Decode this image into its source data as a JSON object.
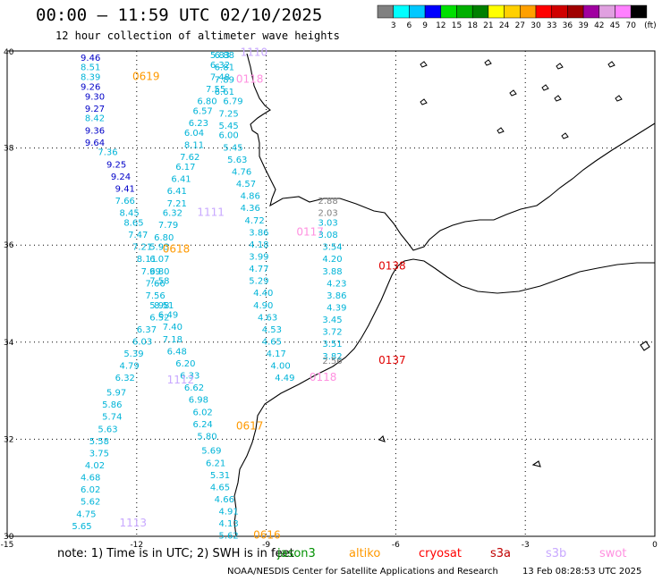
{
  "header": {
    "title": "00:00 — 11:59 UTC 02/10/2025",
    "subtitle": "12 hour collection of altimeter wave heights"
  },
  "scale": {
    "labels": [
      "3",
      "6",
      "9",
      "12",
      "15",
      "18",
      "21",
      "24",
      "27",
      "30",
      "33",
      "36",
      "39",
      "42",
      "45",
      "70"
    ],
    "unit": "(ft)",
    "colors": [
      "#808080",
      "#00ffff",
      "#00c8ff",
      "#0000ff",
      "#00e000",
      "#00b000",
      "#008000",
      "#ffff00",
      "#ffd000",
      "#ffa000",
      "#ff0000",
      "#d00000",
      "#a00000",
      "#a000a0",
      "#e0a0e0",
      "#ff80ff",
      "#000000"
    ]
  },
  "axes": {
    "x_ticks": [
      "-15",
      "-12",
      "-9",
      "-6",
      "-3",
      "0"
    ],
    "y_ticks": [
      "40",
      "38",
      "36",
      "34",
      "32",
      "30"
    ]
  },
  "footer": {
    "note": "note:  1) Time is in UTC;  2) SWH is in feet",
    "satellites": [
      {
        "name": "jason3",
        "color": "#009000"
      },
      {
        "name": "altiko",
        "color": "#ff9900"
      },
      {
        "name": "cryosat",
        "color": "#ff0000"
      },
      {
        "name": "s3a",
        "color": "#c00000"
      },
      {
        "name": "s3b",
        "color": "#c8a8ff"
      },
      {
        "name": "swot",
        "color": "#ff90e0"
      }
    ],
    "credit": "NOAA/NESDIS Center for Satellite Applications and Research",
    "timestamp": "13 Feb 08:28:53 UTC 2025"
  },
  "tracks": [
    {
      "label": "0619",
      "color": "#ff9900",
      "lon": -12.1,
      "lat": 39.4,
      "points": [
        {
          "lon": -13.3,
          "lat": 39.8,
          "v": "9.46",
          "c": "#0000c8"
        },
        {
          "lon": -13.3,
          "lat": 39.6,
          "v": "8.51",
          "c": "#00b4d8"
        },
        {
          "lon": -13.3,
          "lat": 39.4,
          "v": "8.39",
          "c": "#00b4d8"
        },
        {
          "lon": -13.3,
          "lat": 39.2,
          "v": "9.26",
          "c": "#0000c8"
        },
        {
          "lon": -13.2,
          "lat": 39.0,
          "v": "9.30",
          "c": "#0000c8"
        },
        {
          "lon": -13.2,
          "lat": 38.75,
          "v": "9.27",
          "c": "#0000c8"
        },
        {
          "lon": -13.2,
          "lat": 38.55,
          "v": "8.42",
          "c": "#00b4d8"
        },
        {
          "lon": -13.2,
          "lat": 38.3,
          "v": "9.36",
          "c": "#0000c8"
        },
        {
          "lon": -13.2,
          "lat": 38.05,
          "v": "9.64",
          "c": "#0000c8"
        },
        {
          "lon": -12.9,
          "lat": 37.85,
          "v": "7.36",
          "c": "#00b4d8"
        },
        {
          "lon": -12.7,
          "lat": 37.6,
          "v": "9.25",
          "c": "#0000c8"
        },
        {
          "lon": -12.6,
          "lat": 37.35,
          "v": "9.24",
          "c": "#0000c8"
        },
        {
          "lon": -12.5,
          "lat": 37.1,
          "v": "9.41",
          "c": "#0000c8"
        },
        {
          "lon": -12.5,
          "lat": 36.85,
          "v": "7.66",
          "c": "#00b4d8"
        },
        {
          "lon": -12.4,
          "lat": 36.6,
          "v": "8.45",
          "c": "#00b4d8"
        },
        {
          "lon": -12.3,
          "lat": 36.4,
          "v": "8.65",
          "c": "#00b4d8"
        },
        {
          "lon": -12.2,
          "lat": 36.15,
          "v": "7.47",
          "c": "#00b4d8"
        },
        {
          "lon": -12.1,
          "lat": 35.9,
          "v": "7.21",
          "c": "#00b4d8"
        },
        {
          "lon": -12.0,
          "lat": 35.65,
          "v": "8.11",
          "c": "#00b4d8"
        },
        {
          "lon": -11.9,
          "lat": 35.4,
          "v": "7.99",
          "c": "#00b4d8"
        },
        {
          "lon": -11.8,
          "lat": 35.15,
          "v": "7.66",
          "c": "#00b4d8"
        },
        {
          "lon": -11.8,
          "lat": 34.9,
          "v": "7.56",
          "c": "#00b4d8"
        },
        {
          "lon": -11.7,
          "lat": 34.7,
          "v": "5.98",
          "c": "#00b4d8"
        },
        {
          "lon": -11.7,
          "lat": 34.45,
          "v": "6.52",
          "c": "#00b4d8"
        },
        {
          "lon": -12.0,
          "lat": 34.2,
          "v": "6.37",
          "c": "#00b4d8"
        },
        {
          "lon": -12.1,
          "lat": 33.95,
          "v": "6.03",
          "c": "#00b4d8"
        },
        {
          "lon": -12.3,
          "lat": 33.7,
          "v": "5.39",
          "c": "#00b4d8"
        },
        {
          "lon": -12.4,
          "lat": 33.45,
          "v": "4.79",
          "c": "#00b4d8"
        },
        {
          "lon": -12.5,
          "lat": 33.2,
          "v": "6.32",
          "c": "#00b4d8"
        },
        {
          "lon": -12.7,
          "lat": 32.9,
          "v": "5.97",
          "c": "#00b4d8"
        },
        {
          "lon": -12.8,
          "lat": 32.65,
          "v": "5.86",
          "c": "#00b4d8"
        },
        {
          "lon": -12.8,
          "lat": 32.4,
          "v": "5.74",
          "c": "#00b4d8"
        },
        {
          "lon": -12.9,
          "lat": 32.15,
          "v": "5.63",
          "c": "#00b4d8"
        },
        {
          "lon": -13.1,
          "lat": 31.9,
          "v": "5.58",
          "c": "#00b4d8"
        },
        {
          "lon": -13.1,
          "lat": 31.65,
          "v": "3.75",
          "c": "#00b4d8"
        },
        {
          "lon": -13.2,
          "lat": 31.4,
          "v": "4.02",
          "c": "#00b4d8"
        },
        {
          "lon": -13.3,
          "lat": 31.15,
          "v": "4.68",
          "c": "#00b4d8"
        },
        {
          "lon": -13.3,
          "lat": 30.9,
          "v": "6.02",
          "c": "#00b4d8"
        },
        {
          "lon": -13.3,
          "lat": 30.65,
          "v": "5.62",
          "c": "#00b4d8"
        },
        {
          "lon": -13.4,
          "lat": 30.4,
          "v": "4.75",
          "c": "#00b4d8"
        },
        {
          "lon": -13.5,
          "lat": 30.15,
          "v": "5.65",
          "c": "#00b4d8"
        }
      ]
    },
    {
      "label": "1110",
      "color": "#c8a8ff",
      "lon": -9.6,
      "lat": 39.9,
      "points": [
        {
          "lon": -10.3,
          "lat": 39.85,
          "v": "5.83",
          "c": "#00b4d8"
        },
        {
          "lon": -10.3,
          "lat": 39.65,
          "v": "6.32",
          "c": "#00b4d8"
        },
        {
          "lon": -10.3,
          "lat": 39.4,
          "v": "7.48",
          "c": "#00b4d8"
        },
        {
          "lon": -10.4,
          "lat": 39.15,
          "v": "7.55",
          "c": "#00b4d8"
        },
        {
          "lon": -10.6,
          "lat": 38.9,
          "v": "6.80",
          "c": "#00b4d8"
        },
        {
          "lon": -10.7,
          "lat": 38.7,
          "v": "6.57",
          "c": "#00b4d8"
        },
        {
          "lon": -10.8,
          "lat": 38.45,
          "v": "6.23",
          "c": "#00b4d8"
        },
        {
          "lon": -10.9,
          "lat": 38.25,
          "v": "6.04",
          "c": "#00b4d8"
        },
        {
          "lon": -10.9,
          "lat": 38.0,
          "v": "8.11",
          "c": "#00b4d8"
        },
        {
          "lon": -11.0,
          "lat": 37.75,
          "v": "7.62",
          "c": "#00b4d8"
        },
        {
          "lon": -11.1,
          "lat": 37.55,
          "v": "6.17",
          "c": "#00b4d8"
        },
        {
          "lon": -11.2,
          "lat": 37.3,
          "v": "6.41",
          "c": "#00b4d8"
        },
        {
          "lon": -11.3,
          "lat": 37.05,
          "v": "6.41",
          "c": "#00b4d8"
        },
        {
          "lon": -11.3,
          "lat": 36.8,
          "v": "7.21",
          "c": "#00b4d8"
        },
        {
          "lon": -11.4,
          "lat": 36.6,
          "v": "6.32",
          "c": "#00b4d8"
        },
        {
          "lon": -11.5,
          "lat": 36.35,
          "v": "7.79",
          "c": "#00b4d8"
        },
        {
          "lon": -11.6,
          "lat": 36.1,
          "v": "6.80",
          "c": "#00b4d8"
        },
        {
          "lon": -11.7,
          "lat": 35.9,
          "v": "5.93",
          "c": "#00b4d8"
        },
        {
          "lon": -11.7,
          "lat": 35.65,
          "v": "6.07",
          "c": "#00b4d8"
        },
        {
          "lon": -11.7,
          "lat": 35.4,
          "v": "6.80",
          "c": "#00b4d8"
        },
        {
          "lon": -11.7,
          "lat": 35.2,
          "v": "7.58",
          "c": "#00b4d8"
        },
        {
          "lon": -11.6,
          "lat": 34.7,
          "v": "8.51",
          "c": "#00b4d8"
        },
        {
          "lon": -11.5,
          "lat": 34.5,
          "v": "6.49",
          "c": "#00b4d8"
        },
        {
          "lon": -11.4,
          "lat": 34.25,
          "v": "7.40",
          "c": "#00b4d8"
        },
        {
          "lon": -11.4,
          "lat": 34.0,
          "v": "7.18",
          "c": "#00b4d8"
        },
        {
          "lon": -11.3,
          "lat": 33.75,
          "v": "6.48",
          "c": "#00b4d8"
        },
        {
          "lon": -11.1,
          "lat": 33.5,
          "v": "6.20",
          "c": "#00b4d8"
        },
        {
          "lon": -11.0,
          "lat": 33.25,
          "v": "6.33",
          "c": "#00b4d8"
        },
        {
          "lon": -10.9,
          "lat": 33.0,
          "v": "6.62",
          "c": "#00b4d8"
        },
        {
          "lon": -10.8,
          "lat": 32.75,
          "v": "6.98",
          "c": "#00b4d8"
        },
        {
          "lon": -10.7,
          "lat": 32.5,
          "v": "6.02",
          "c": "#00b4d8"
        },
        {
          "lon": -10.7,
          "lat": 32.25,
          "v": "6.24",
          "c": "#00b4d8"
        },
        {
          "lon": -10.6,
          "lat": 32.0,
          "v": "5.80",
          "c": "#00b4d8"
        },
        {
          "lon": -10.5,
          "lat": 31.7,
          "v": "5.69",
          "c": "#00b4d8"
        },
        {
          "lon": -10.4,
          "lat": 31.45,
          "v": "6.21",
          "c": "#00b4d8"
        },
        {
          "lon": -10.3,
          "lat": 31.2,
          "v": "5.31",
          "c": "#00b4d8"
        },
        {
          "lon": -10.3,
          "lat": 30.95,
          "v": "4.65",
          "c": "#00b4d8"
        },
        {
          "lon": -10.2,
          "lat": 30.7,
          "v": "4.66",
          "c": "#00b4d8"
        },
        {
          "lon": -10.1,
          "lat": 30.45,
          "v": "4.91",
          "c": "#00b4d8"
        },
        {
          "lon": -10.1,
          "lat": 30.2,
          "v": "4.13",
          "c": "#00b4d8"
        },
        {
          "lon": -10.1,
          "lat": 29.95,
          "v": "5.62",
          "c": "#00b4d8"
        }
      ]
    },
    {
      "label": "0118",
      "color": "#ff90e0",
      "lon": -9.7,
      "lat": 39.35,
      "points": [
        {
          "lon": -10.2,
          "lat": 39.85,
          "v": "6.88",
          "c": "#00b4d8"
        },
        {
          "lon": -10.2,
          "lat": 39.6,
          "v": "6.81",
          "c": "#00b4d8"
        },
        {
          "lon": -10.2,
          "lat": 39.35,
          "v": "7.89",
          "c": "#00b4d8"
        },
        {
          "lon": -10.2,
          "lat": 39.1,
          "v": "6.61",
          "c": "#00b4d8"
        },
        {
          "lon": -10.0,
          "lat": 38.9,
          "v": "6.79",
          "c": "#00b4d8"
        },
        {
          "lon": -10.1,
          "lat": 38.65,
          "v": "7.25",
          "c": "#00b4d8"
        },
        {
          "lon": -10.1,
          "lat": 38.4,
          "v": "5.45",
          "c": "#00b4d8"
        },
        {
          "lon": -10.1,
          "lat": 38.2,
          "v": "6.00",
          "c": "#00b4d8"
        },
        {
          "lon": -10.0,
          "lat": 37.95,
          "v": "5.45",
          "c": "#00b4d8"
        },
        {
          "lon": -9.9,
          "lat": 37.7,
          "v": "5.63",
          "c": "#00b4d8"
        },
        {
          "lon": -9.8,
          "lat": 37.45,
          "v": "4.76",
          "c": "#00b4d8"
        },
        {
          "lon": -9.7,
          "lat": 37.2,
          "v": "4.57",
          "c": "#00b4d8"
        },
        {
          "lon": -9.6,
          "lat": 36.95,
          "v": "4.86",
          "c": "#00b4d8"
        },
        {
          "lon": -9.6,
          "lat": 36.7,
          "v": "4.36",
          "c": "#00b4d8"
        },
        {
          "lon": -9.5,
          "lat": 36.45,
          "v": "4.72",
          "c": "#00b4d8"
        },
        {
          "lon": -9.4,
          "lat": 36.2,
          "v": "3.86",
          "c": "#00b4d8"
        },
        {
          "lon": -9.4,
          "lat": 35.95,
          "v": "4.18",
          "c": "#00b4d8"
        },
        {
          "lon": -9.4,
          "lat": 35.7,
          "v": "3.99",
          "c": "#00b4d8"
        },
        {
          "lon": -9.4,
          "lat": 35.45,
          "v": "4.77",
          "c": "#00b4d8"
        },
        {
          "lon": -9.4,
          "lat": 35.2,
          "v": "5.29",
          "c": "#00b4d8"
        },
        {
          "lon": -9.3,
          "lat": 34.95,
          "v": "4.40",
          "c": "#00b4d8"
        },
        {
          "lon": -9.3,
          "lat": 34.7,
          "v": "4.90",
          "c": "#00b4d8"
        },
        {
          "lon": -9.2,
          "lat": 34.45,
          "v": "4.63",
          "c": "#00b4d8"
        },
        {
          "lon": -9.1,
          "lat": 34.2,
          "v": "4.53",
          "c": "#00b4d8"
        },
        {
          "lon": -9.1,
          "lat": 33.95,
          "v": "4.65",
          "c": "#00b4d8"
        },
        {
          "lon": -9.0,
          "lat": 33.7,
          "v": "4.17",
          "c": "#00b4d8"
        },
        {
          "lon": -8.9,
          "lat": 33.45,
          "v": "4.00",
          "c": "#00b4d8"
        },
        {
          "lon": -8.8,
          "lat": 33.2,
          "v": "4.49",
          "c": "#00b4d8"
        }
      ]
    },
    {
      "label": "0117",
      "color": "#ff90e0",
      "lon": -8.3,
      "lat": 36.2,
      "points": []
    },
    {
      "label": "1111",
      "color": "#c8a8ff",
      "lon": -10.6,
      "lat": 36.6,
      "points": []
    },
    {
      "label": "0618",
      "color": "#ff9900",
      "lon": -11.4,
      "lat": 35.85,
      "points": []
    },
    {
      "label": "1112",
      "color": "#c8a8ff",
      "lon": -11.3,
      "lat": 33.15,
      "points": []
    },
    {
      "label": "0617",
      "color": "#ff9900",
      "lon": -9.7,
      "lat": 32.2,
      "points": []
    },
    {
      "label": "0616",
      "color": "#ff9900",
      "lon": -9.3,
      "lat": 29.95,
      "points": []
    },
    {
      "label": "1113",
      "color": "#c8a8ff",
      "lon": -12.4,
      "lat": 30.2,
      "points": []
    },
    {
      "label": "0138",
      "color": "#e00000",
      "lon": -6.4,
      "lat": 35.5,
      "points": [
        {
          "lon": -7.8,
          "lat": 36.85,
          "v": "2.88",
          "c": "#808080"
        },
        {
          "lon": -7.8,
          "lat": 36.6,
          "v": "2.03",
          "c": "#808080"
        },
        {
          "lon": -7.8,
          "lat": 36.4,
          "v": "3.03",
          "c": "#00b4d8"
        },
        {
          "lon": -7.8,
          "lat": 36.15,
          "v": "3.08",
          "c": "#00b4d8"
        },
        {
          "lon": -7.7,
          "lat": 35.9,
          "v": "3.54",
          "c": "#00b4d8"
        },
        {
          "lon": -7.7,
          "lat": 35.65,
          "v": "4.20",
          "c": "#00b4d8"
        },
        {
          "lon": -7.7,
          "lat": 35.4,
          "v": "3.88",
          "c": "#00b4d8"
        },
        {
          "lon": -7.6,
          "lat": 35.15,
          "v": "4.23",
          "c": "#00b4d8"
        },
        {
          "lon": -7.6,
          "lat": 34.9,
          "v": "3.86",
          "c": "#00b4d8"
        },
        {
          "lon": -7.6,
          "lat": 34.65,
          "v": "4.39",
          "c": "#00b4d8"
        },
        {
          "lon": -7.7,
          "lat": 34.4,
          "v": "3.45",
          "c": "#00b4d8"
        },
        {
          "lon": -7.7,
          "lat": 34.15,
          "v": "3.72",
          "c": "#00b4d8"
        },
        {
          "lon": -7.7,
          "lat": 33.9,
          "v": "3.51",
          "c": "#00b4d8"
        },
        {
          "lon": -7.7,
          "lat": 33.65,
          "v": "3.82",
          "c": "#00b4d8"
        }
      ]
    },
    {
      "label": "0137",
      "color": "#e00000",
      "lon": -6.4,
      "lat": 33.55,
      "points": [
        {
          "lon": -7.7,
          "lat": 33.55,
          "v": "2.56",
          "c": "#808080"
        }
      ]
    },
    {
      "label": "0118",
      "color": "#ff90e0",
      "lon": -8.0,
      "lat": 33.2,
      "points": []
    }
  ]
}
